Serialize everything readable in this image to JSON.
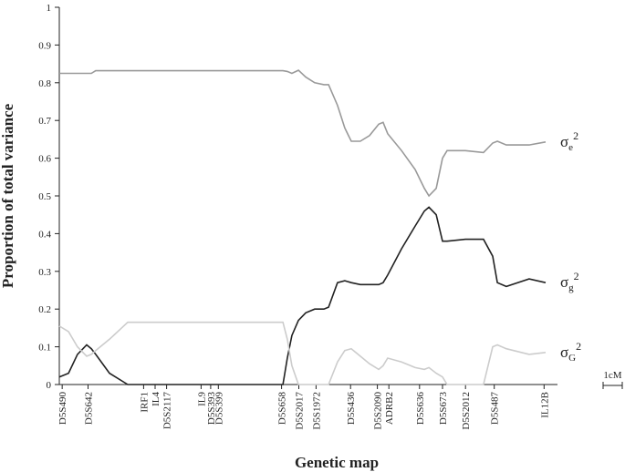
{
  "chart_data": {
    "type": "line",
    "y_label": "Proportion of total variance",
    "x_label": "Genetic map",
    "x": [
      0,
      0.48,
      0.95,
      1.43,
      1.67,
      1.9,
      2.62,
      3.57,
      4.52,
      5.48,
      6.43,
      7.38,
      8.33,
      9.29,
      10.24,
      11.19,
      11.67,
      11.9,
      12.14,
      12.48,
      12.86,
      13.33,
      13.81,
      14.05,
      14.52,
      14.9,
      15.24,
      15.71,
      16.19,
      16.67,
      16.9,
      17.14,
      17.86,
      18.57,
      19.05,
      19.29,
      19.67,
      20,
      20.24,
      21.19,
      22.14,
      22.62,
      22.86,
      23.33,
      24.52,
      25.38
    ],
    "series": [
      {
        "symbol": "σ",
        "subscript": "e",
        "superscript": "2",
        "color": "#999999",
        "values": [
          0.825,
          0.825,
          0.825,
          0.825,
          0.825,
          0.832,
          0.832,
          0.832,
          0.832,
          0.832,
          0.832,
          0.832,
          0.832,
          0.832,
          0.832,
          0.832,
          0.832,
          0.83,
          0.825,
          0.833,
          0.815,
          0.8,
          0.795,
          0.795,
          0.74,
          0.68,
          0.645,
          0.645,
          0.66,
          0.69,
          0.695,
          0.665,
          0.62,
          0.57,
          0.52,
          0.5,
          0.52,
          0.6,
          0.62,
          0.62,
          0.615,
          0.64,
          0.645,
          0.635,
          0.635,
          0.643
        ]
      },
      {
        "symbol": "σ",
        "subscript": "g",
        "superscript": "2",
        "color": "#222222",
        "values": [
          0.02,
          0.03,
          0.08,
          0.105,
          0.095,
          0.08,
          0.03,
          0,
          0,
          0,
          0,
          0,
          0,
          0,
          0,
          0,
          0,
          0.07,
          0.13,
          0.17,
          0.19,
          0.2,
          0.2,
          0.205,
          0.27,
          0.275,
          0.27,
          0.265,
          0.265,
          0.265,
          0.27,
          0.29,
          0.36,
          0.42,
          0.46,
          0.47,
          0.45,
          0.38,
          0.38,
          0.385,
          0.385,
          0.34,
          0.27,
          0.26,
          0.28,
          0.27
        ]
      },
      {
        "symbol": "σ",
        "subscript": "G",
        "superscript": "2",
        "color": "#cccccc",
        "values": [
          0.155,
          0.14,
          0.1,
          0.075,
          0.08,
          0.09,
          0.12,
          0.165,
          0.165,
          0.165,
          0.165,
          0.165,
          0.165,
          0.165,
          0.165,
          0.165,
          0.165,
          0.12,
          0.05,
          0,
          0,
          0,
          0,
          0,
          0.06,
          0.09,
          0.095,
          0.075,
          0.055,
          0.04,
          0.05,
          0.07,
          0.06,
          0.045,
          0.04,
          0.045,
          0.03,
          0.02,
          0,
          0,
          0,
          0.1,
          0.105,
          0.095,
          0.08,
          0.085
        ]
      }
    ],
    "markers": [
      {
        "name": "D5S490",
        "position": 0.15
      },
      {
        "name": "D5S642",
        "position": 1.5
      },
      {
        "name": "IRF1",
        "position": 4.4
      },
      {
        "name": "IL4",
        "position": 5.0
      },
      {
        "name": "D5S2117",
        "position": 5.6
      },
      {
        "name": "IL9",
        "position": 7.4
      },
      {
        "name": "D5S393",
        "position": 7.9
      },
      {
        "name": "D5S399",
        "position": 8.3
      },
      {
        "name": "D5S658",
        "position": 11.6
      },
      {
        "name": "D5S2017",
        "position": 12.5
      },
      {
        "name": "D5S1972",
        "position": 13.4
      },
      {
        "name": "D5S436",
        "position": 15.2
      },
      {
        "name": "D5S2090",
        "position": 16.6
      },
      {
        "name": "ADRB2",
        "position": 17.2
      },
      {
        "name": "D5S636",
        "position": 18.8
      },
      {
        "name": "D5S673",
        "position": 20.0
      },
      {
        "name": "D5S2012",
        "position": 21.2
      },
      {
        "name": "D5S487",
        "position": 22.7
      },
      {
        "name": "IL12B",
        "position": 25.3
      }
    ],
    "scale_bar": {
      "label": "1cM",
      "length": 1
    },
    "xlim": [
      0,
      26
    ],
    "ylim": [
      0,
      1
    ],
    "yticks": [
      0,
      0.1,
      0.2,
      0.3,
      0.4,
      0.5,
      0.6,
      0.7,
      0.8,
      0.9,
      1
    ]
  }
}
